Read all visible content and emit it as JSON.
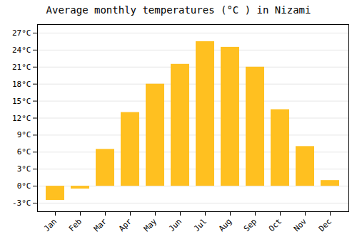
{
  "chart_data": {
    "type": "bar",
    "title": "Average monthly temperatures (°C ) in Nizami",
    "categories": [
      "Jan",
      "Feb",
      "Mar",
      "Apr",
      "May",
      "Jun",
      "Jul",
      "Aug",
      "Sep",
      "Oct",
      "Nov",
      "Dec"
    ],
    "values": [
      -2.5,
      -0.5,
      6.5,
      13.0,
      18.0,
      21.5,
      25.5,
      24.5,
      21.0,
      13.5,
      7.0,
      1.0
    ],
    "color": "#FFC020",
    "ylim": [
      -4.5,
      28.5
    ],
    "yticks": [
      {
        "value": -3,
        "label": "-3°C"
      },
      {
        "value": 0,
        "label": "0°C"
      },
      {
        "value": 3,
        "label": "3°C"
      },
      {
        "value": 6,
        "label": "6°C"
      },
      {
        "value": 9,
        "label": "9°C"
      },
      {
        "value": 12,
        "label": "12°C"
      },
      {
        "value": 15,
        "label": "15°C"
      },
      {
        "value": 18,
        "label": "18°C"
      },
      {
        "value": 21,
        "label": "21°C"
      },
      {
        "value": 24,
        "label": "24°C"
      },
      {
        "value": 27,
        "label": "27°C"
      }
    ],
    "grid": true
  }
}
